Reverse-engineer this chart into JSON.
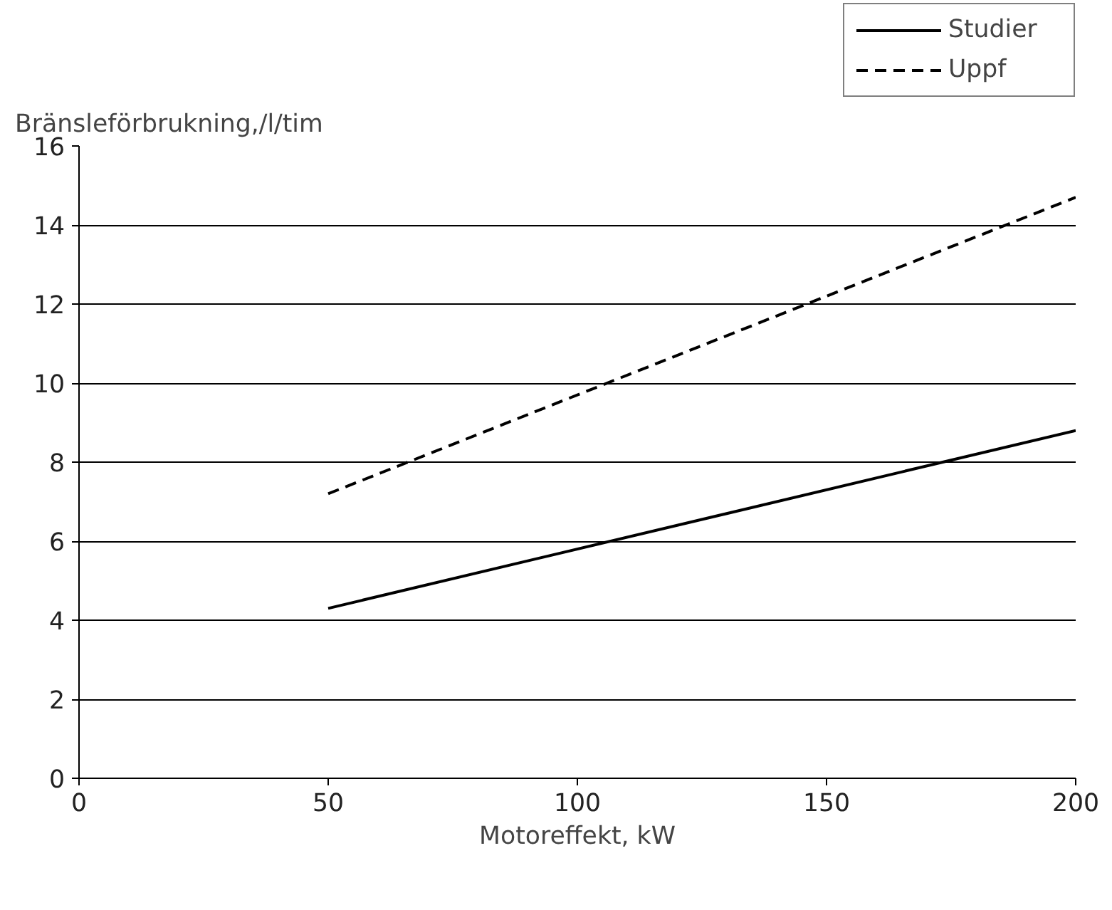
{
  "chart_data": {
    "type": "line",
    "xlabel": "Motoreffekt, kW",
    "ylabel": "Bränsleförbrukning,/l/tim",
    "x": [
      50,
      200
    ],
    "series": [
      {
        "name": "Studier",
        "color": "#000000",
        "values": [
          4.3,
          8.8
        ],
        "line_style": "solid"
      },
      {
        "name": "Uppf",
        "color": "#000000",
        "values": [
          7.2,
          14.7
        ],
        "line_style": "dashed"
      }
    ],
    "xlim": [
      0,
      200
    ],
    "xticks": [
      0,
      50,
      100,
      150,
      200
    ],
    "ylim": [
      0,
      16
    ],
    "yticks": [
      0,
      2,
      4,
      6,
      8,
      10,
      12,
      14,
      16
    ],
    "grid": "y",
    "legend": "top right",
    "marker": "none"
  }
}
